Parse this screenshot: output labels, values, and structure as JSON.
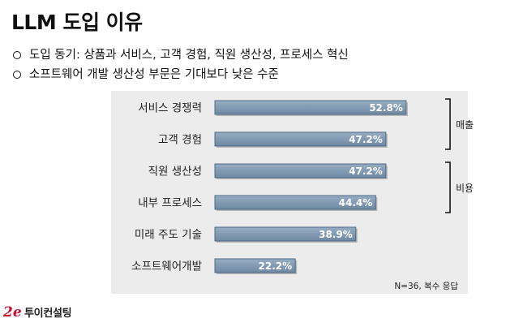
{
  "title": "LLM 도입 이유",
  "bullets": [
    "도입 동기: 상품과 서비스, 고객 경험, 직원 생산성, 프로세스 혁신",
    "소프트웨어 개발 생산성 부문은 기대보다 낮은 수준"
  ],
  "chart_data": {
    "type": "bar",
    "orientation": "horizontal",
    "categories": [
      "서비스 경쟁력",
      "고객 경험",
      "직원 생산성",
      "내부 프로세스",
      "미래 주도 기술",
      "소프트웨어개발"
    ],
    "values": [
      52.8,
      47.2,
      47.2,
      44.4,
      38.9,
      22.2
    ],
    "value_labels": [
      "52.8%",
      "47.2%",
      "47.2%",
      "44.4%",
      "38.9%",
      "22.2%"
    ],
    "xlim": [
      0,
      60
    ],
    "grid": false,
    "bar_color": "#7f98b0",
    "groups": [
      {
        "label": "매출",
        "from": 0,
        "to": 1
      },
      {
        "label": "비용",
        "from": 2,
        "to": 3
      }
    ],
    "note": "N=36, 복수 응답"
  },
  "footer": {
    "logo_text": "2e",
    "company": "투이컨설팅"
  }
}
